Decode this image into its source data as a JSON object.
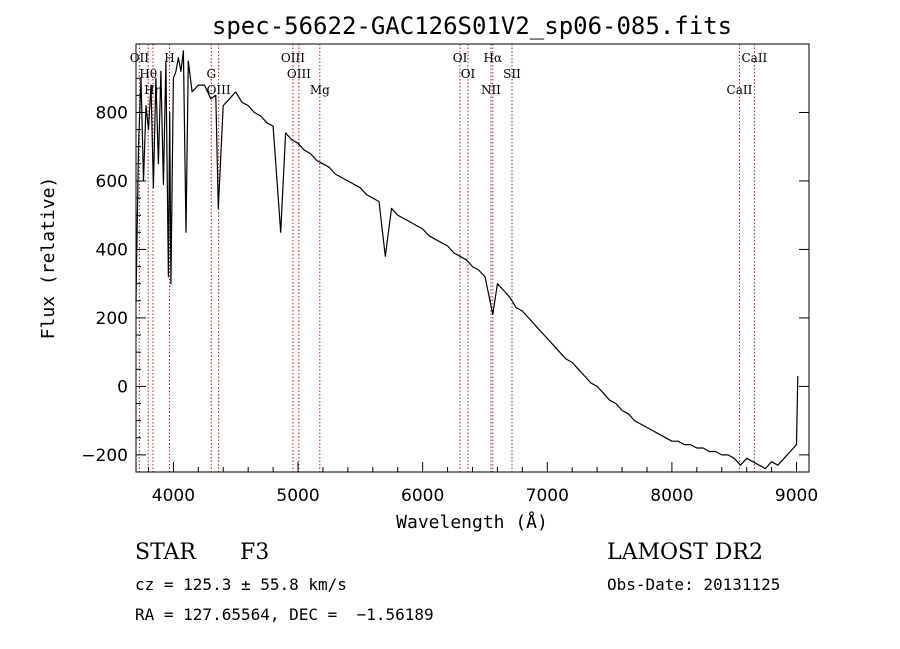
{
  "chart_data": {
    "type": "line",
    "title": "spec-56622-GAC126S01V2_sp06-085.fits",
    "xlabel": "Wavelength (Å)",
    "ylabel": "Flux (relative)",
    "xlim": [
      3700,
      9100
    ],
    "ylim": [
      -250,
      1000
    ],
    "xticks": [
      4000,
      5000,
      6000,
      7000,
      8000,
      9000
    ],
    "yticks": [
      -200,
      0,
      200,
      400,
      600,
      800
    ],
    "grid": false,
    "series": [
      {
        "x": [
          3700,
          3720,
          3740,
          3760,
          3780,
          3800,
          3820,
          3840,
          3860,
          3880,
          3900,
          3920,
          3940,
          3960,
          3970,
          3980,
          4000,
          4020,
          4040,
          4060,
          4080,
          4101,
          4120,
          4150,
          4200,
          4250,
          4300,
          4340,
          4360,
          4400,
          4450,
          4500,
          4550,
          4600,
          4650,
          4700,
          4750,
          4800,
          4861,
          4900,
          4950,
          5000,
          5050,
          5100,
          5150,
          5200,
          5250,
          5300,
          5350,
          5400,
          5450,
          5500,
          5550,
          5600,
          5650,
          5700,
          5750,
          5800,
          5850,
          5900,
          5950,
          6000,
          6050,
          6100,
          6150,
          6200,
          6250,
          6300,
          6350,
          6400,
          6450,
          6500,
          6563,
          6600,
          6650,
          6700,
          6750,
          6800,
          6850,
          6900,
          6950,
          7000,
          7050,
          7100,
          7150,
          7200,
          7250,
          7300,
          7350,
          7400,
          7450,
          7500,
          7550,
          7600,
          7650,
          7700,
          7750,
          7800,
          7850,
          7900,
          7950,
          8000,
          8050,
          8100,
          8150,
          8200,
          8250,
          8300,
          8350,
          8400,
          8450,
          8500,
          8550,
          8600,
          8650,
          8700,
          8750,
          8800,
          8850,
          8900,
          8950,
          9000,
          9010
        ],
        "y": [
          250,
          700,
          900,
          600,
          820,
          750,
          880,
          580,
          900,
          650,
          920,
          590,
          950,
          320,
          800,
          300,
          900,
          920,
          960,
          920,
          980,
          450,
          950,
          860,
          880,
          880,
          840,
          850,
          520,
          820,
          840,
          860,
          830,
          820,
          800,
          790,
          770,
          760,
          450,
          740,
          720,
          710,
          690,
          680,
          660,
          650,
          640,
          620,
          610,
          600,
          590,
          580,
          560,
          550,
          540,
          380,
          520,
          500,
          490,
          480,
          470,
          460,
          440,
          430,
          420,
          410,
          390,
          380,
          370,
          350,
          340,
          320,
          210,
          300,
          280,
          260,
          230,
          220,
          200,
          180,
          160,
          140,
          120,
          100,
          80,
          70,
          50,
          30,
          10,
          0,
          -20,
          -40,
          -50,
          -70,
          -80,
          -100,
          -110,
          -120,
          -130,
          -140,
          -150,
          -160,
          -160,
          -170,
          -170,
          -180,
          -180,
          -190,
          -190,
          -200,
          -200,
          -210,
          -230,
          -210,
          -220,
          -230,
          -240,
          -220,
          -230,
          -210,
          -190,
          -170,
          30
        ]
      }
    ],
    "lines": [
      {
        "label": "OII",
        "wavelength": 3727
      },
      {
        "label": "Hθ",
        "wavelength": 3798
      },
      {
        "label": "Hη",
        "wavelength": 3836
      },
      {
        "label": "H",
        "wavelength": 3969
      },
      {
        "label": "G",
        "wavelength": 4304
      },
      {
        "label": "OIII",
        "wavelength": 4363
      },
      {
        "label": "OIII",
        "wavelength": 4959
      },
      {
        "label": "OIII",
        "wavelength": 5007
      },
      {
        "label": "Mg",
        "wavelength": 5175
      },
      {
        "label": "OI",
        "wavelength": 6300
      },
      {
        "label": "OI",
        "wavelength": 6364
      },
      {
        "label": "NII",
        "wavelength": 6548
      },
      {
        "label": "Hα",
        "wavelength": 6563
      },
      {
        "label": "SII",
        "wavelength": 6717
      },
      {
        "label": "CaII",
        "wavelength": 8542
      },
      {
        "label": "CaII",
        "wavelength": 8662
      }
    ]
  },
  "info": {
    "star_class": "STAR",
    "subclass": "F3",
    "survey": "LAMOST DR2",
    "cz": "cz = 125.3 ± 55.8 km/s",
    "obs_date": "Obs-Date: 20131125",
    "radec": "RA = 127.65564, DEC =  −1.56189"
  }
}
